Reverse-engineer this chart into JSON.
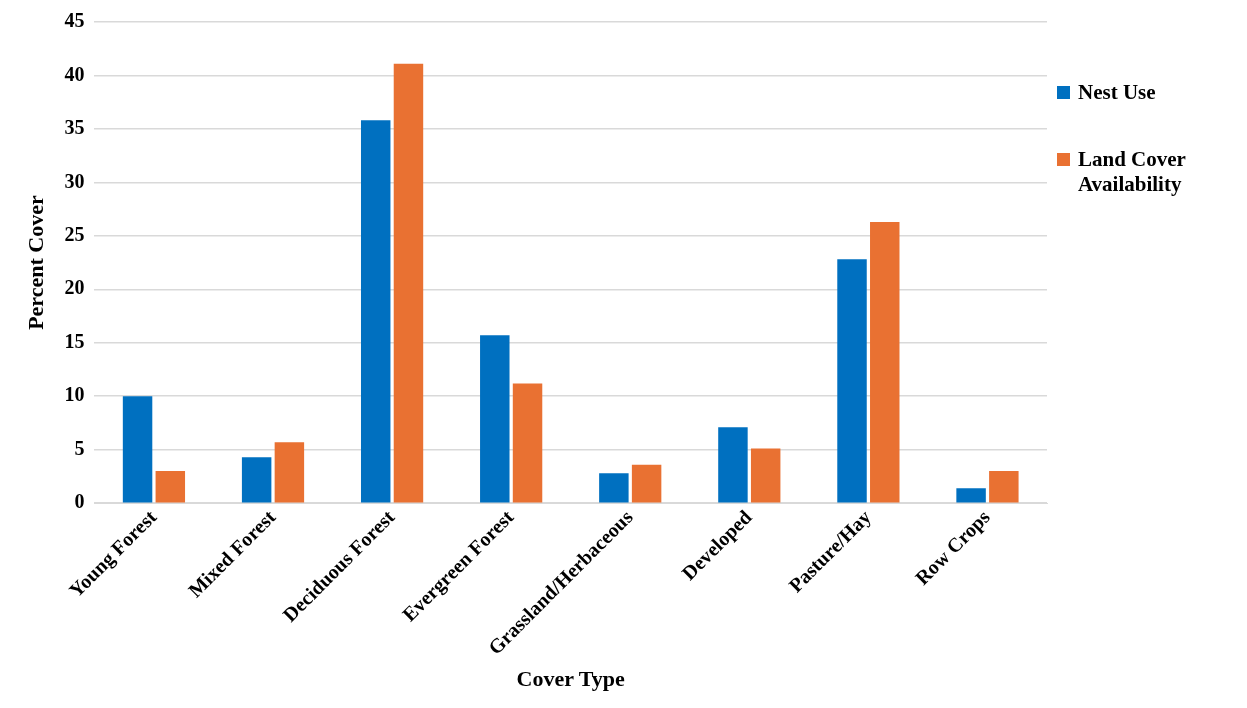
{
  "chart_data": {
    "type": "bar",
    "xlabel": "Cover Type",
    "ylabel": "Percent Cover",
    "categories": [
      "Young Forest",
      "Mixed Forest",
      "Deciduous Forest",
      "Evergreen Forest",
      "Grassland/Herbaceous",
      "Developed",
      "Pasture/Hay",
      "Row Crops"
    ],
    "series": [
      {
        "name": "Nest Use",
        "color": "#0070c0",
        "values": [
          10.0,
          4.3,
          35.8,
          15.7,
          2.8,
          7.1,
          22.8,
          1.4
        ]
      },
      {
        "name": "Land Cover Availability",
        "color": "#e97132",
        "values": [
          3.0,
          5.7,
          41.1,
          11.2,
          3.6,
          5.1,
          26.3,
          3.0
        ]
      }
    ],
    "ylim": [
      0,
      45
    ],
    "yticks": [
      0,
      5,
      10,
      15,
      20,
      25,
      30,
      35,
      40,
      45
    ],
    "grid": "y",
    "legend": "right"
  }
}
